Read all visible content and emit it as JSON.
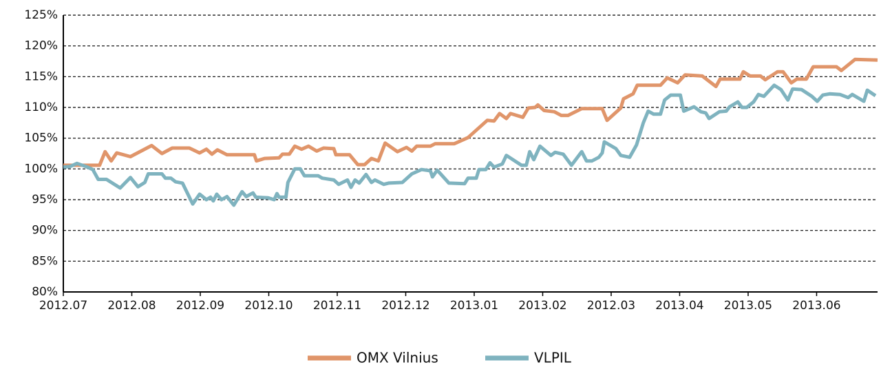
{
  "chart_data": {
    "type": "line",
    "xlim": [
      0,
      11.89
    ],
    "xticks": [
      {
        "value": 0,
        "label": "2012.07"
      },
      {
        "value": 1,
        "label": "2012.08"
      },
      {
        "value": 2,
        "label": "2012.09"
      },
      {
        "value": 3,
        "label": "2012.10"
      },
      {
        "value": 4,
        "label": "2012.11"
      },
      {
        "value": 5,
        "label": "2012.12"
      },
      {
        "value": 6,
        "label": "2013.01"
      },
      {
        "value": 7,
        "label": "2013.02"
      },
      {
        "value": 8,
        "label": "2012.03"
      },
      {
        "value": 9,
        "label": "2013.04"
      },
      {
        "value": 10,
        "label": "2013.05"
      },
      {
        "value": 11,
        "label": "2013.06"
      }
    ],
    "ylim": [
      80,
      125
    ],
    "yticks": [
      {
        "value": 80,
        "label": "80%"
      },
      {
        "value": 85,
        "label": "85%"
      },
      {
        "value": 90,
        "label": "90%"
      },
      {
        "value": 95,
        "label": "95%"
      },
      {
        "value": 100,
        "label": "100%"
      },
      {
        "value": 105,
        "label": "105%"
      },
      {
        "value": 110,
        "label": "110%"
      },
      {
        "value": 115,
        "label": "115%"
      },
      {
        "value": 120,
        "label": "120%"
      },
      {
        "value": 125,
        "label": "125%"
      }
    ],
    "grid": true,
    "legend": "bottom",
    "series": [
      {
        "name": "OMX Vilnius",
        "color": "#e0956a",
        "x": [
          0,
          0.53,
          0.61,
          0.7,
          0.78,
          0.98,
          1.29,
          1.44,
          1.59,
          1.84,
          1.99,
          2.09,
          2.17,
          2.25,
          2.39,
          2.79,
          2.82,
          2.94,
          3.15,
          3.2,
          3.3,
          3.38,
          3.48,
          3.58,
          3.7,
          3.8,
          3.95,
          3.98,
          4.18,
          4.3,
          4.4,
          4.5,
          4.6,
          4.7,
          4.88,
          5.01,
          5.09,
          5.16,
          5.36,
          5.43,
          5.71,
          5.91,
          6.19,
          6.29,
          6.37,
          6.47,
          6.53,
          6.71,
          6.79,
          6.89,
          6.93,
          7.02,
          7.17,
          7.27,
          7.37,
          7.57,
          7.87,
          7.94,
          8.14,
          8.18,
          8.32,
          8.38,
          8.72,
          8.82,
          8.97,
          9.08,
          9.33,
          9.53,
          9.59,
          9.88,
          9.93,
          10.03,
          10.18,
          10.25,
          10.43,
          10.51,
          10.63,
          10.71,
          10.85,
          10.95,
          11.29,
          11.36,
          11.56,
          11.89
        ],
        "values": [
          100.6,
          100.6,
          102.8,
          101.3,
          102.6,
          102,
          103.8,
          102.5,
          103.4,
          103.4,
          102.6,
          103.2,
          102.4,
          103.1,
          102.3,
          102.3,
          101.3,
          101.7,
          101.8,
          102.4,
          102.4,
          103.7,
          103.2,
          103.7,
          102.9,
          103.4,
          103.3,
          102.3,
          102.3,
          100.7,
          100.7,
          101.7,
          101.3,
          104.2,
          102.8,
          103.5,
          102.9,
          103.7,
          103.7,
          104.1,
          104.1,
          105.1,
          107.9,
          107.8,
          109.0,
          108.2,
          109.0,
          108.4,
          109.9,
          110,
          110.4,
          109.5,
          109.3,
          108.7,
          108.7,
          109.8,
          109.8,
          107.9,
          109.9,
          111.4,
          112.2,
          113.6,
          113.6,
          114.8,
          114,
          115.3,
          115.1,
          113.4,
          114.6,
          114.6,
          115.8,
          115.1,
          115.1,
          114.5,
          115.8,
          115.8,
          114,
          114.6,
          114.6,
          116.6,
          116.6,
          116.0,
          117.8,
          117.7
        ]
      },
      {
        "name": "VLPIL",
        "color": "#7fb3bf",
        "x": [
          0,
          0.1,
          0.2,
          0.33,
          0.43,
          0.51,
          0.63,
          0.83,
          0.98,
          1.09,
          1.19,
          1.24,
          1.44,
          1.49,
          1.57,
          1.64,
          1.74,
          1.89,
          1.99,
          2.09,
          2.15,
          2.19,
          2.24,
          2.31,
          2.39,
          2.49,
          2.61,
          2.67,
          2.77,
          2.81,
          2.99,
          3.08,
          3.12,
          3.15,
          3.25,
          3.28,
          3.38,
          3.46,
          3.52,
          3.72,
          3.78,
          3.95,
          4.02,
          4.15,
          4.2,
          4.26,
          4.32,
          4.42,
          4.5,
          4.55,
          4.68,
          4.75,
          4.95,
          5.09,
          5.23,
          5.36,
          5.39,
          5.46,
          5.63,
          5.86,
          5.91,
          6.03,
          6.07,
          6.17,
          6.23,
          6.29,
          6.41,
          6.47,
          6.69,
          6.76,
          6.81,
          6.87,
          6.96,
          7.12,
          7.18,
          7.3,
          7.42,
          7.57,
          7.64,
          7.72,
          7.82,
          7.87,
          7.9,
          8.07,
          8.14,
          8.27,
          8.37,
          8.47,
          8.54,
          8.62,
          8.72,
          8.78,
          8.87,
          9.01,
          9.06,
          9.21,
          9.31,
          9.38,
          9.43,
          9.58,
          9.68,
          9.73,
          9.85,
          9.91,
          9.98,
          10.08,
          10.15,
          10.23,
          10.38,
          10.48,
          10.58,
          10.65,
          10.78,
          10.93,
          11.01,
          11.09,
          11.19,
          11.34,
          11.46,
          11.52,
          11.69,
          11.74,
          11.86
        ],
        "values": [
          100.3,
          100.4,
          100.9,
          100.4,
          99.9,
          98.3,
          98.3,
          96.9,
          98.6,
          97.1,
          97.8,
          99.2,
          99.2,
          98.5,
          98.5,
          97.9,
          97.7,
          94.3,
          95.9,
          95,
          95.4,
          94.8,
          95.9,
          95,
          95.5,
          94.1,
          96.3,
          95.5,
          96.1,
          95.4,
          95.3,
          95,
          96,
          95.4,
          95.4,
          97.8,
          100,
          100,
          98.9,
          98.9,
          98.5,
          98.2,
          97.5,
          98.2,
          97,
          98.2,
          97.7,
          99.1,
          97.8,
          98.2,
          97.5,
          97.7,
          97.8,
          99.2,
          99.9,
          99.7,
          98.7,
          99.8,
          97.7,
          97.6,
          98.5,
          98.5,
          99.9,
          99.9,
          101,
          100.3,
          100.8,
          102.2,
          100.6,
          100.6,
          102.8,
          101.5,
          103.7,
          102.2,
          102.7,
          102.4,
          100.6,
          102.8,
          101.3,
          101.3,
          101.9,
          102.6,
          104.4,
          103.3,
          102.2,
          101.9,
          103.9,
          107.5,
          109.4,
          108.9,
          108.9,
          111.2,
          112,
          112,
          109.4,
          110.1,
          109.3,
          109.1,
          108.2,
          109.3,
          109.4,
          110.1,
          110.9,
          110,
          110,
          110.9,
          112.1,
          111.8,
          113.6,
          112.9,
          111.2,
          113,
          112.9,
          111.8,
          111,
          112,
          112.2,
          112.1,
          111.6,
          112.1,
          111,
          112.8,
          111.9
        ]
      }
    ]
  }
}
